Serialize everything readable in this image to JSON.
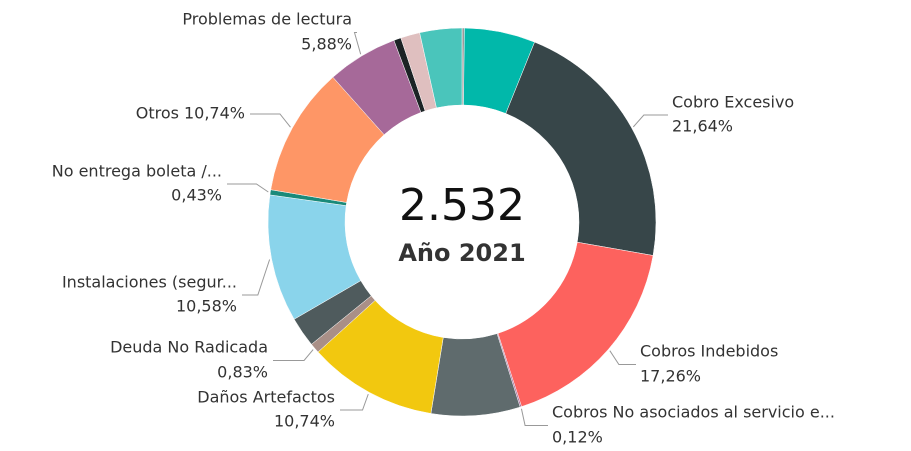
{
  "chart_data": {
    "type": "donut",
    "center_value": "2.532",
    "center_label": "Año 2021",
    "categories": [
      null,
      null,
      "Cobro Excesivo",
      "Cobros Indebidos",
      "Cobros No asociados al servicio e...",
      null,
      "Daños Artefactos",
      "Deuda No Radicada",
      null,
      "Instalaciones (segur...",
      "No entrega boleta /...",
      "Otros",
      "Problemas de lectura",
      null,
      null,
      null
    ],
    "values": [
      0.2,
      5.9,
      21.64,
      17.26,
      0.12,
      7.4,
      10.74,
      0.83,
      2.5,
      10.58,
      0.43,
      10.74,
      5.88,
      0.6,
      1.6,
      3.5
    ],
    "value_labels": [
      null,
      null,
      "21,64%",
      "17,26%",
      "0,12%",
      null,
      "10,74%",
      "0,83%",
      null,
      "10,58%",
      "0,43%",
      "10,74%",
      "5,88%",
      null,
      null,
      null
    ],
    "colors": [
      "#9a9a9a",
      "#01b8aa",
      "#374649",
      "#fd625e",
      "#a66999",
      "#5f6b6d",
      "#f2c80f",
      "#a98f87",
      "#4f5b5d",
      "#8ad4eb",
      "#1a8a7a",
      "#fe9666",
      "#a66999",
      "#1c2325",
      "#dfbfbf",
      "#4ac5bb"
    ]
  }
}
